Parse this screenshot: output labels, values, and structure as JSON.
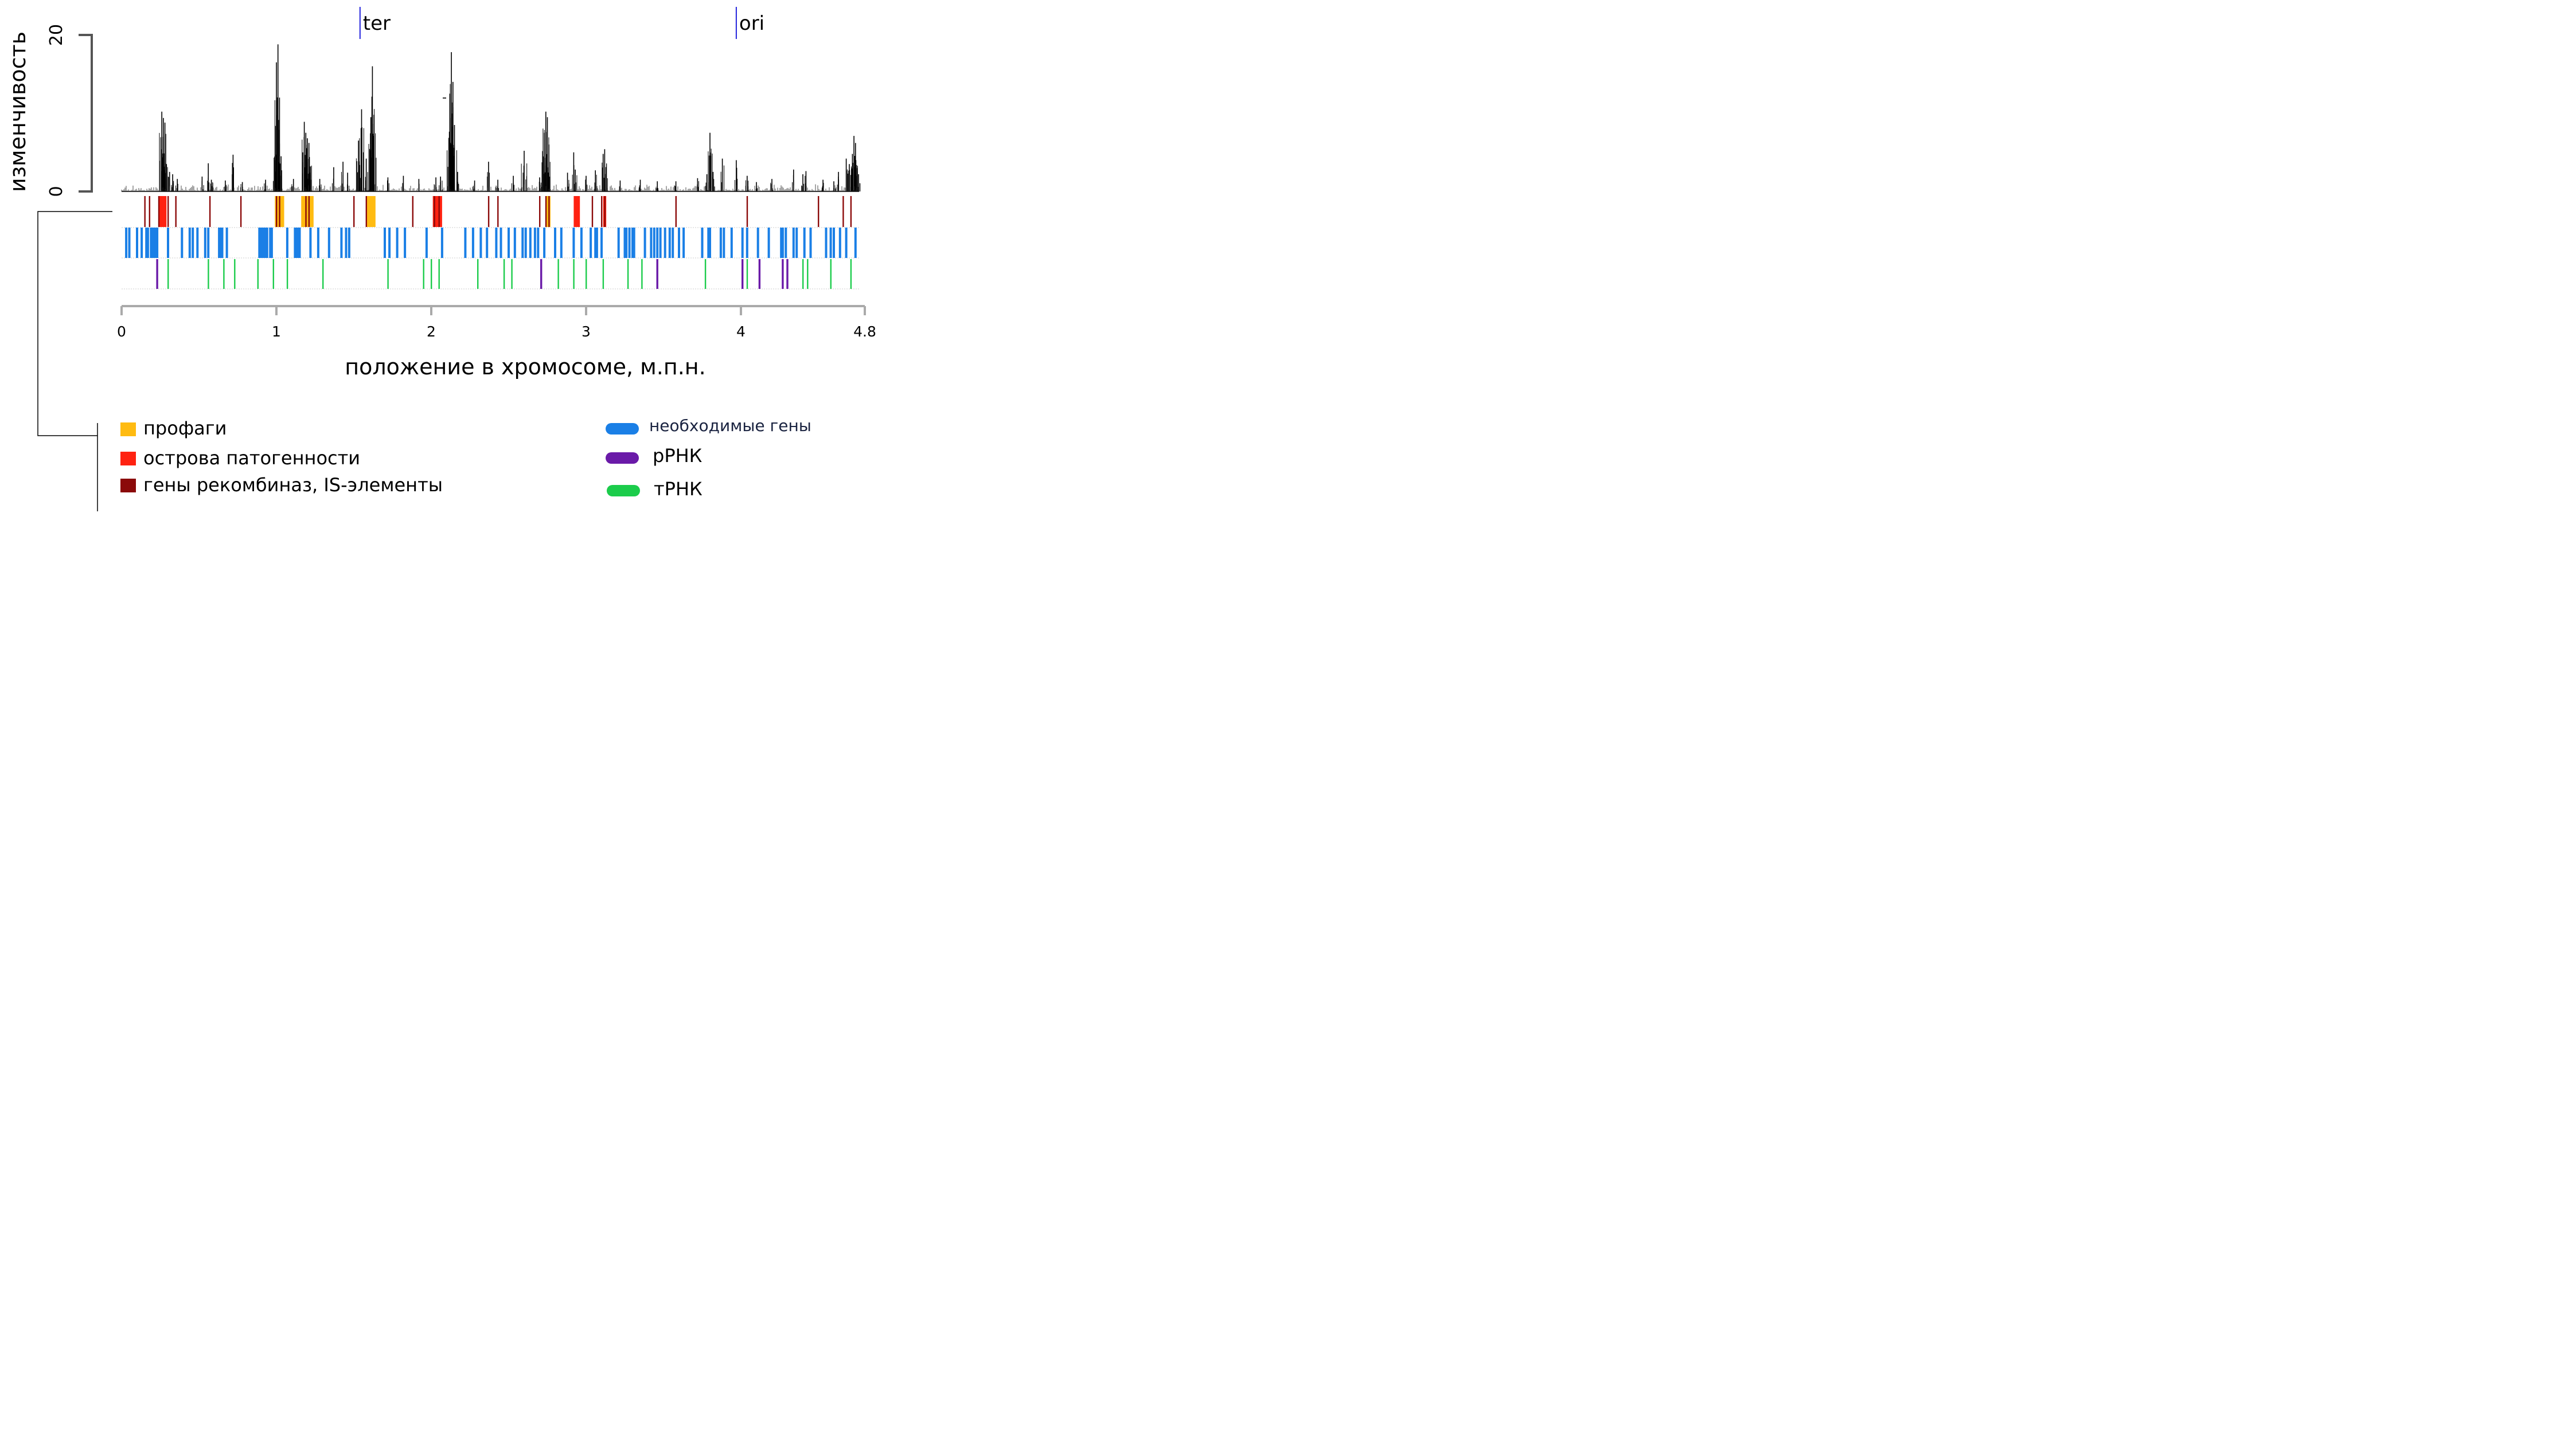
{
  "chart_data": {
    "type": "bar",
    "ylabel": "изменчивость",
    "xlabel": "положение в хромосоме, м.п.н.",
    "ylim": [
      0,
      20
    ],
    "xlim": [
      0,
      4.8
    ],
    "y_ticks": [
      "0",
      "20"
    ],
    "x_ticks": [
      {
        "value": 0,
        "label": "0"
      },
      {
        "value": 1,
        "label": "1"
      },
      {
        "value": 2,
        "label": "2"
      },
      {
        "value": 3,
        "label": "3"
      },
      {
        "value": 4,
        "label": "4"
      },
      {
        "value": 4.8,
        "label": "4.8"
      }
    ],
    "markers": [
      {
        "label": "ter",
        "x": 1.54,
        "color": "#2222dd"
      },
      {
        "label": "ori",
        "x": 3.97,
        "color": "#2222dd"
      }
    ],
    "variability_peaks": [
      {
        "x": 0.26,
        "y": 10.2
      },
      {
        "x": 0.27,
        "y": 9.4
      },
      {
        "x": 0.28,
        "y": 8.8
      },
      {
        "x": 0.29,
        "y": 3.5
      },
      {
        "x": 0.31,
        "y": 2.5
      },
      {
        "x": 0.33,
        "y": 2.2
      },
      {
        "x": 0.36,
        "y": 1.6
      },
      {
        "x": 0.52,
        "y": 1.9
      },
      {
        "x": 0.56,
        "y": 3.6
      },
      {
        "x": 0.58,
        "y": 1.5
      },
      {
        "x": 0.67,
        "y": 1.4
      },
      {
        "x": 0.72,
        "y": 4.7
      },
      {
        "x": 0.78,
        "y": 1.2
      },
      {
        "x": 0.93,
        "y": 1.5
      },
      {
        "x": 0.99,
        "y": 4.0
      },
      {
        "x": 1.0,
        "y": 16.5
      },
      {
        "x": 1.01,
        "y": 18.8
      },
      {
        "x": 1.02,
        "y": 12.0
      },
      {
        "x": 1.03,
        "y": 4.5
      },
      {
        "x": 1.11,
        "y": 1.6
      },
      {
        "x": 1.17,
        "y": 5.0
      },
      {
        "x": 1.18,
        "y": 8.9
      },
      {
        "x": 1.19,
        "y": 7.5
      },
      {
        "x": 1.2,
        "y": 6.8
      },
      {
        "x": 1.21,
        "y": 6.2
      },
      {
        "x": 1.22,
        "y": 3.2
      },
      {
        "x": 1.28,
        "y": 1.6
      },
      {
        "x": 1.37,
        "y": 3.1
      },
      {
        "x": 1.43,
        "y": 3.8
      },
      {
        "x": 1.46,
        "y": 2.4
      },
      {
        "x": 1.53,
        "y": 6.5
      },
      {
        "x": 1.55,
        "y": 10.5
      },
      {
        "x": 1.58,
        "y": 4.2
      },
      {
        "x": 1.61,
        "y": 9.5
      },
      {
        "x": 1.62,
        "y": 16.0
      },
      {
        "x": 1.63,
        "y": 9.8
      },
      {
        "x": 1.72,
        "y": 1.8
      },
      {
        "x": 1.82,
        "y": 2.0
      },
      {
        "x": 1.92,
        "y": 1.6
      },
      {
        "x": 2.03,
        "y": 1.8
      },
      {
        "x": 2.06,
        "y": 1.9
      },
      {
        "x": 2.12,
        "y": 12.5
      },
      {
        "x": 2.13,
        "y": 17.8
      },
      {
        "x": 2.14,
        "y": 14.0
      },
      {
        "x": 2.15,
        "y": 8.5
      },
      {
        "x": 2.17,
        "y": 2.5
      },
      {
        "x": 2.28,
        "y": 1.4
      },
      {
        "x": 2.37,
        "y": 3.8
      },
      {
        "x": 2.43,
        "y": 1.5
      },
      {
        "x": 2.53,
        "y": 2.0
      },
      {
        "x": 2.6,
        "y": 5.2
      },
      {
        "x": 2.7,
        "y": 1.8
      },
      {
        "x": 2.73,
        "y": 7.5
      },
      {
        "x": 2.74,
        "y": 10.2
      },
      {
        "x": 2.75,
        "y": 9.5
      },
      {
        "x": 2.76,
        "y": 6.0
      },
      {
        "x": 2.88,
        "y": 2.4
      },
      {
        "x": 2.92,
        "y": 5.0
      },
      {
        "x": 2.93,
        "y": 2.8
      },
      {
        "x": 3.0,
        "y": 2.0
      },
      {
        "x": 3.06,
        "y": 2.7
      },
      {
        "x": 3.11,
        "y": 4.8
      },
      {
        "x": 3.12,
        "y": 5.4
      },
      {
        "x": 3.22,
        "y": 1.4
      },
      {
        "x": 3.35,
        "y": 1.5
      },
      {
        "x": 3.46,
        "y": 1.3
      },
      {
        "x": 3.58,
        "y": 1.3
      },
      {
        "x": 3.72,
        "y": 1.7
      },
      {
        "x": 3.78,
        "y": 2.2
      },
      {
        "x": 3.8,
        "y": 7.5
      },
      {
        "x": 3.82,
        "y": 2.5
      },
      {
        "x": 3.88,
        "y": 4.2
      },
      {
        "x": 3.97,
        "y": 4.0
      },
      {
        "x": 4.04,
        "y": 2.0
      },
      {
        "x": 4.1,
        "y": 1.2
      },
      {
        "x": 4.2,
        "y": 1.6
      },
      {
        "x": 4.34,
        "y": 2.8
      },
      {
        "x": 4.4,
        "y": 2.2
      },
      {
        "x": 4.42,
        "y": 2.6
      },
      {
        "x": 4.53,
        "y": 1.5
      },
      {
        "x": 4.6,
        "y": 1.3
      },
      {
        "x": 4.63,
        "y": 2.5
      },
      {
        "x": 4.68,
        "y": 4.2
      },
      {
        "x": 4.7,
        "y": 3.5
      },
      {
        "x": 4.72,
        "y": 4.8
      },
      {
        "x": 4.73,
        "y": 7.1
      },
      {
        "x": 4.74,
        "y": 6.2
      },
      {
        "x": 4.76,
        "y": 2.2
      }
    ],
    "tracks": {
      "prophages": {
        "color": "#ffbb11",
        "regions": [
          [
            0.99,
            1.05
          ],
          [
            1.16,
            1.24
          ],
          [
            1.58,
            1.64
          ],
          [
            2.74,
            2.77
          ]
        ]
      },
      "pathogenicity_islands": {
        "color": "#ff2211",
        "regions": [
          [
            0.24,
            0.29
          ],
          [
            2.01,
            2.07
          ],
          [
            2.92,
            2.96
          ],
          [
            3.11,
            3.13
          ]
        ]
      },
      "recombinase_is": {
        "color": "#8b0a0a",
        "positions": [
          0.15,
          0.18,
          0.24,
          0.3,
          0.35,
          0.57,
          0.77,
          1.0,
          1.02,
          1.19,
          1.21,
          1.5,
          1.58,
          1.88,
          2.02,
          2.05,
          2.37,
          2.43,
          2.7,
          2.74,
          2.76,
          3.04,
          3.1,
          3.12,
          3.58,
          4.04,
          4.5,
          4.66,
          4.71
        ]
      },
      "essential_genes": {
        "color": "#1a7fe6",
        "positions": [
          0.03,
          0.05,
          0.1,
          0.13,
          0.16,
          0.17,
          0.19,
          0.2,
          0.21,
          0.22,
          0.23,
          0.3,
          0.39,
          0.44,
          0.46,
          0.49,
          0.54,
          0.56,
          0.63,
          0.64,
          0.65,
          0.68,
          0.89,
          0.9,
          0.91,
          0.92,
          0.93,
          0.94,
          0.96,
          0.97,
          1.07,
          1.12,
          1.13,
          1.14,
          1.15,
          1.22,
          1.27,
          1.34,
          1.42,
          1.45,
          1.47,
          1.7,
          1.73,
          1.78,
          1.83,
          1.97,
          2.07,
          2.22,
          2.27,
          2.32,
          2.36,
          2.42,
          2.45,
          2.5,
          2.54,
          2.59,
          2.61,
          2.64,
          2.67,
          2.69,
          2.73,
          2.8,
          2.84,
          2.92,
          2.97,
          3.03,
          3.06,
          3.07,
          3.1,
          3.21,
          3.25,
          3.26,
          3.28,
          3.3,
          3.31,
          3.38,
          3.42,
          3.44,
          3.46,
          3.48,
          3.51,
          3.54,
          3.56,
          3.6,
          3.63,
          3.75,
          3.79,
          3.8,
          3.87,
          3.89,
          3.94,
          4.01,
          4.04,
          4.11,
          4.18,
          4.26,
          4.27,
          4.29,
          4.34,
          4.36,
          4.41,
          4.45,
          4.55,
          4.58,
          4.6,
          4.64,
          4.68,
          4.74
        ]
      },
      "rrna": {
        "color": "#6a1aa8",
        "positions": [
          0.23,
          2.71,
          3.46,
          4.01,
          4.12,
          4.27,
          4.3
        ]
      },
      "trna": {
        "color": "#1bcc4b",
        "positions": [
          0.23,
          0.3,
          0.56,
          0.66,
          0.73,
          0.88,
          0.98,
          1.07,
          1.3,
          1.72,
          1.95,
          2.0,
          2.05,
          2.3,
          2.47,
          2.52,
          2.82,
          2.92,
          3.0,
          3.11,
          3.27,
          3.36,
          3.77,
          4.04,
          4.4,
          4.43,
          4.58,
          4.71
        ]
      }
    },
    "legend": {
      "prophages": "профаги",
      "pathogenicity_islands": "острова патогенности",
      "recombinase_is": "гены рекомбиназ, IS-элементы",
      "essential_genes": "необходимые гены",
      "rrna": "рРНК",
      "trna": "тРНК"
    }
  }
}
